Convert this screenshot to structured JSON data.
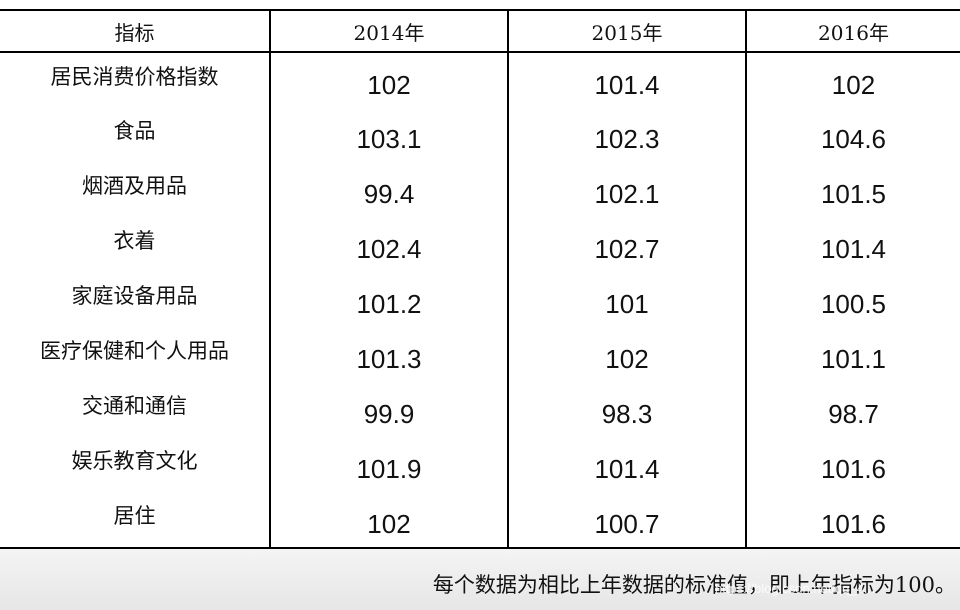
{
  "table": {
    "columns": [
      "指标",
      "2014年",
      "2015年",
      "2016年"
    ],
    "rows": [
      {
        "label": "居民消费价格指数",
        "values": [
          "102",
          "101.4",
          "102"
        ]
      },
      {
        "label": "食品",
        "values": [
          "103.1",
          "102.3",
          "104.6"
        ]
      },
      {
        "label": "烟酒及用品",
        "values": [
          "99.4",
          "102.1",
          "101.5"
        ]
      },
      {
        "label": "衣着",
        "values": [
          "102.4",
          "102.7",
          "101.4"
        ]
      },
      {
        "label": "家庭设备用品",
        "values": [
          "101.2",
          "101",
          "100.5"
        ]
      },
      {
        "label": "医疗保健和个人用品",
        "values": [
          "101.3",
          "102",
          "101.1"
        ]
      },
      {
        "label": "交通和通信",
        "values": [
          "99.9",
          "98.3",
          "98.7"
        ]
      },
      {
        "label": "娱乐教育文化",
        "values": [
          "101.9",
          "101.4",
          "101.6"
        ]
      },
      {
        "label": "居住",
        "values": [
          "102",
          "100.7",
          "101.6"
        ]
      }
    ]
  },
  "footnote": "每个数据为相比上年数据的标准值，即上年指标为100。",
  "watermark": "https://blog.csdn.net/qq_4..."
}
